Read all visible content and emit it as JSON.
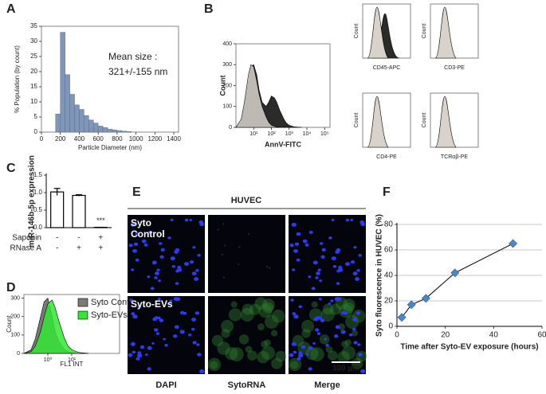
{
  "panel_labels": [
    "A",
    "B",
    "C",
    "D",
    "E",
    "F"
  ],
  "chart_data": [
    {
      "type": "histogram",
      "ylabel": "% Population (by count)",
      "xlabel": "Particle Diameter (nm)",
      "annotation": [
        "Mean size :",
        "321+/-155 nm"
      ],
      "color": "#8096b8",
      "bins": [
        150,
        200,
        250,
        300,
        350,
        400,
        450,
        500,
        550,
        600,
        650,
        700,
        750,
        800,
        850,
        900,
        950
      ],
      "values": [
        6,
        33,
        19,
        12.5,
        9,
        7.5,
        5.5,
        4,
        3,
        2,
        1.5,
        1,
        0.7,
        0.5,
        0.3,
        0.2
      ],
      "xlim": [
        0,
        1450
      ],
      "xticks": [
        0,
        200,
        400,
        600,
        800,
        1000,
        1200,
        1400
      ],
      "ylim": [
        0,
        35
      ],
      "yticks": [
        0,
        5,
        10,
        15,
        20,
        25,
        30,
        35
      ],
      "box": true
    },
    {
      "type": "area",
      "ylabel": "Count",
      "xlabel": "AnnV-FITC",
      "log_x": true,
      "x": [
        1,
        2,
        3,
        5,
        7,
        10,
        15,
        20,
        30,
        50,
        70,
        100,
        150,
        200,
        300,
        500,
        700,
        1000,
        2000,
        5000
      ],
      "series": [
        {
          "color": "#2b2b2b",
          "values": [
            0,
            30,
            100,
            220,
            290,
            300,
            250,
            180,
            120,
            100,
            120,
            150,
            140,
            120,
            80,
            40,
            20,
            10,
            2,
            0
          ]
        },
        {
          "color": "#d8d2ca",
          "values": [
            0,
            40,
            120,
            250,
            300,
            290,
            220,
            160,
            100,
            50,
            25,
            10,
            5,
            2,
            1,
            0,
            0,
            0,
            0,
            0
          ]
        }
      ],
      "xlim": [
        1,
        200000
      ],
      "xticks": [
        {
          "value": 10,
          "label": "10¹"
        },
        {
          "value": 100,
          "label": "10²"
        },
        {
          "value": 1000,
          "label": "10³"
        },
        {
          "value": 10000,
          "label": "10⁴"
        },
        {
          "value": 100000,
          "label": "10⁵"
        }
      ],
      "ylim": [
        0,
        400
      ],
      "yticks": [
        0,
        100,
        200,
        300,
        400
      ],
      "box": true
    },
    {
      "type": "bar",
      "ylabel": "miR-146b-5p expression",
      "color": "#ffffff",
      "values": [
        1.02,
        0.92,
        0.01
      ],
      "errors": [
        0.1,
        0.02,
        0
      ],
      "significance": [
        null,
        null,
        "***"
      ],
      "conditions": [
        {
          "name": "Saponin",
          "values": [
            "-",
            "-",
            "+"
          ]
        },
        {
          "name": "RNase A",
          "values": [
            "-",
            "+",
            "+"
          ]
        }
      ],
      "ylim": [
        0,
        1.5
      ],
      "yticks": [
        {
          "value": 0,
          "label": "0.0"
        },
        0.5,
        {
          "value": 1,
          "label": "1.0"
        },
        1.5
      ]
    },
    {
      "type": "area",
      "ylabel": "Count",
      "xlabel": "FL1 INT",
      "log_x": true,
      "legend": "top-right",
      "x": [
        0.1,
        0.2,
        0.3,
        0.5,
        0.7,
        1,
        1.5,
        2,
        3,
        5,
        7,
        10,
        20,
        50
      ],
      "series": [
        {
          "name": "Syto Control",
          "color": "#7a7a7a",
          "values": [
            0,
            20,
            80,
            200,
            280,
            300,
            200,
            120,
            60,
            20,
            10,
            5,
            0,
            0
          ]
        },
        {
          "name": "Syto-EVs",
          "color": "#33e633",
          "values": [
            0,
            10,
            40,
            120,
            200,
            270,
            290,
            250,
            170,
            80,
            40,
            20,
            5,
            0
          ]
        }
      ],
      "xlim": [
        0.1,
        1000
      ],
      "xticks": [
        {
          "value": 1,
          "label": "10⁰"
        },
        {
          "value": 10,
          "label": "10¹"
        }
      ],
      "ylim": [
        0,
        320
      ],
      "yticks": [
        0,
        100,
        200,
        300
      ],
      "box": true
    },
    {
      "type": "scatter",
      "ylabel": "Syto fluorescence in HUVEC (%)",
      "xlabel": "Time after Syto-EV exposure (hours)",
      "x": [
        2,
        6,
        12,
        24,
        48
      ],
      "values": [
        7,
        17,
        22,
        42,
        65
      ],
      "color": "#4a86c8",
      "trendline": true,
      "xlim": [
        0,
        60
      ],
      "xticks": [
        0,
        20,
        40,
        60
      ],
      "ylim": [
        0,
        80
      ],
      "yticks": [
        0,
        20,
        40,
        60,
        80
      ],
      "grid": true
    }
  ],
  "flow_panels": [
    {
      "ylabel": "Count",
      "xlabel": "CD45-APC"
    },
    {
      "ylabel": "Count",
      "xlabel": "CD3-PE"
    },
    {
      "ylabel": "Count",
      "xlabel": "CD4-PE"
    },
    {
      "ylabel": "Count",
      "xlabel": "TCRαβ-PE"
    }
  ],
  "microscopy": {
    "title": "HUVEC",
    "rows": [
      "Syto Control",
      "Syto-EVs"
    ],
    "columns": [
      "DAPI",
      "SytoRNA",
      "Merge"
    ],
    "scale_bar": "100 µm"
  }
}
